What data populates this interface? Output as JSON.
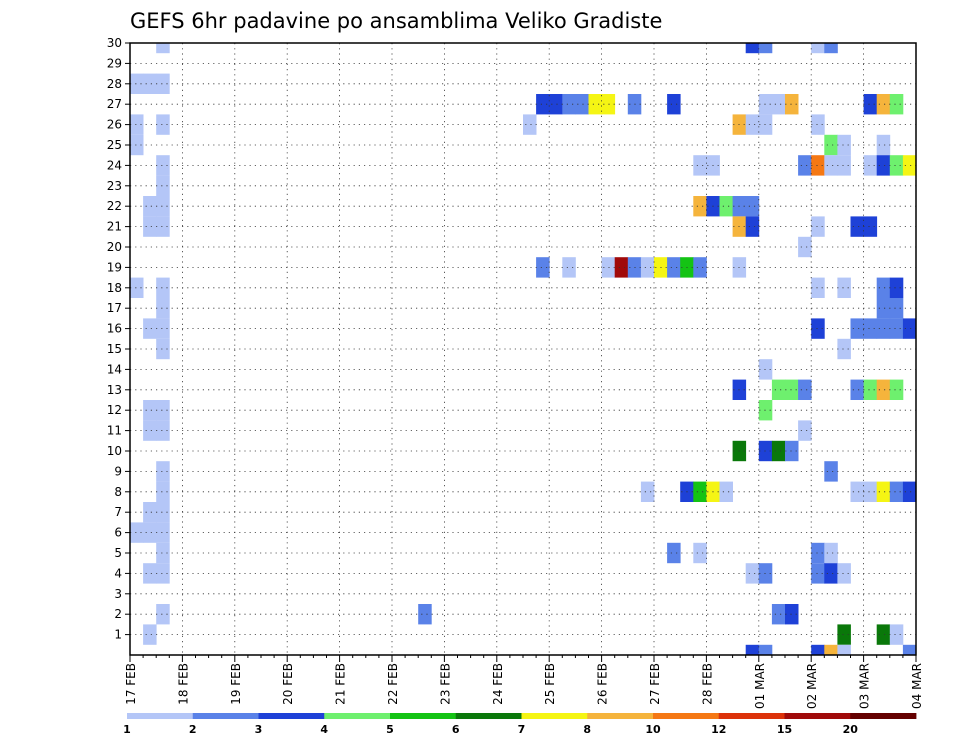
{
  "chart_data": {
    "type": "heatmap",
    "title": "GEFS 6hr padavine po ansamblima Veliko Gradiste",
    "x_tick_labels": [
      "17 FEB",
      "18 FEB",
      "19 FEB",
      "20 FEB",
      "21 FEB",
      "22 FEB",
      "23 FEB",
      "24 FEB",
      "25 FEB",
      "26 FEB",
      "27 FEB",
      "28 FEB",
      "01 MAR",
      "02 MAR",
      "03 MAR",
      "04 MAR"
    ],
    "y_tick_labels": [
      "1",
      "2",
      "3",
      "4",
      "5",
      "6",
      "7",
      "8",
      "9",
      "10",
      "11",
      "12",
      "13",
      "14",
      "15",
      "16",
      "17",
      "18",
      "19",
      "20",
      "21",
      "22",
      "23",
      "24",
      "25",
      "26",
      "27",
      "28",
      "29",
      "30"
    ],
    "y_range": [
      0,
      30
    ],
    "steps_per_day": 4,
    "grid": true,
    "colorbar": {
      "labels": [
        "1",
        "2",
        "3",
        "4",
        "5",
        "6",
        "7",
        "8",
        "10",
        "12",
        "15",
        "20"
      ],
      "colors": [
        "#b4c6f7",
        "#5a82e8",
        "#1e41d7",
        "#6ef06e",
        "#14c314",
        "#0a780a",
        "#f5f514",
        "#f5b43c",
        "#f57814",
        "#dc320a",
        "#a00a0a",
        "#640000"
      ]
    },
    "cells": [
      {
        "member": 30,
        "step": 2,
        "level": 1
      },
      {
        "member": 28,
        "step": 0,
        "level": 1
      },
      {
        "member": 28,
        "step": 1,
        "level": 1
      },
      {
        "member": 28,
        "step": 2,
        "level": 1
      },
      {
        "member": 26,
        "step": 0,
        "level": 1
      },
      {
        "member": 26,
        "step": 2,
        "level": 1
      },
      {
        "member": 25,
        "step": 0,
        "level": 1
      },
      {
        "member": 24,
        "step": 2,
        "level": 1
      },
      {
        "member": 23,
        "step": 2,
        "level": 1
      },
      {
        "member": 22,
        "step": 1,
        "level": 1
      },
      {
        "member": 22,
        "step": 2,
        "level": 1
      },
      {
        "member": 21,
        "step": 1,
        "level": 1
      },
      {
        "member": 21,
        "step": 2,
        "level": 1
      },
      {
        "member": 18,
        "step": 0,
        "level": 1
      },
      {
        "member": 18,
        "step": 2,
        "level": 1
      },
      {
        "member": 17,
        "step": 2,
        "level": 1
      },
      {
        "member": 16,
        "step": 1,
        "level": 1
      },
      {
        "member": 16,
        "step": 2,
        "level": 1
      },
      {
        "member": 15,
        "step": 2,
        "level": 1
      },
      {
        "member": 12,
        "step": 1,
        "level": 1
      },
      {
        "member": 12,
        "step": 2,
        "level": 1
      },
      {
        "member": 11,
        "step": 1,
        "level": 1
      },
      {
        "member": 11,
        "step": 2,
        "level": 1
      },
      {
        "member": 9,
        "step": 2,
        "level": 1
      },
      {
        "member": 8,
        "step": 2,
        "level": 1
      },
      {
        "member": 7,
        "step": 1,
        "level": 1
      },
      {
        "member": 7,
        "step": 2,
        "level": 1
      },
      {
        "member": 6,
        "step": 0,
        "level": 1
      },
      {
        "member": 6,
        "step": 1,
        "level": 1
      },
      {
        "member": 6,
        "step": 2,
        "level": 1
      },
      {
        "member": 5,
        "step": 2,
        "level": 1
      },
      {
        "member": 4,
        "step": 1,
        "level": 1
      },
      {
        "member": 4,
        "step": 2,
        "level": 1
      },
      {
        "member": 2,
        "step": 2,
        "level": 1
      },
      {
        "member": 1,
        "step": 1,
        "level": 1
      },
      {
        "member": 2,
        "step": 22,
        "level": 2
      },
      {
        "member": 27,
        "step": 31,
        "level": 3
      },
      {
        "member": 27,
        "step": 32,
        "level": 3
      },
      {
        "member": 27,
        "step": 33,
        "level": 2
      },
      {
        "member": 27,
        "step": 34,
        "level": 2
      },
      {
        "member": 27,
        "step": 35,
        "level": 7
      },
      {
        "member": 27,
        "step": 36,
        "level": 7
      },
      {
        "member": 27,
        "step": 38,
        "level": 2
      },
      {
        "member": 27,
        "step": 41,
        "level": 3
      },
      {
        "member": 27,
        "step": 48,
        "level": 1
      },
      {
        "member": 27,
        "step": 49,
        "level": 1
      },
      {
        "member": 27,
        "step": 50,
        "level": 8
      },
      {
        "member": 27,
        "step": 56,
        "level": 3
      },
      {
        "member": 27,
        "step": 57,
        "level": 8
      },
      {
        "member": 27,
        "step": 58,
        "level": 4
      },
      {
        "member": 26,
        "step": 30,
        "level": 1
      },
      {
        "member": 26,
        "step": 46,
        "level": 8
      },
      {
        "member": 26,
        "step": 47,
        "level": 1
      },
      {
        "member": 26,
        "step": 48,
        "level": 1
      },
      {
        "member": 26,
        "step": 52,
        "level": 1
      },
      {
        "member": 25,
        "step": 53,
        "level": 4
      },
      {
        "member": 25,
        "step": 54,
        "level": 1
      },
      {
        "member": 25,
        "step": 57,
        "level": 1
      },
      {
        "member": 24,
        "step": 43,
        "level": 1
      },
      {
        "member": 24,
        "step": 44,
        "level": 1
      },
      {
        "member": 24,
        "step": 51,
        "level": 2
      },
      {
        "member": 24,
        "step": 52,
        "level": 9
      },
      {
        "member": 24,
        "step": 53,
        "level": 1
      },
      {
        "member": 24,
        "step": 54,
        "level": 1
      },
      {
        "member": 24,
        "step": 56,
        "level": 1
      },
      {
        "member": 24,
        "step": 57,
        "level": 3
      },
      {
        "member": 24,
        "step": 58,
        "level": 4
      },
      {
        "member": 24,
        "step": 59,
        "level": 7
      },
      {
        "member": 22,
        "step": 43,
        "level": 8
      },
      {
        "member": 22,
        "step": 44,
        "level": 3
      },
      {
        "member": 22,
        "step": 45,
        "level": 4
      },
      {
        "member": 22,
        "step": 46,
        "level": 2
      },
      {
        "member": 22,
        "step": 47,
        "level": 2
      },
      {
        "member": 21,
        "step": 46,
        "level": 8
      },
      {
        "member": 21,
        "step": 47,
        "level": 3
      },
      {
        "member": 21,
        "step": 52,
        "level": 1
      },
      {
        "member": 21,
        "step": 55,
        "level": 3
      },
      {
        "member": 21,
        "step": 56,
        "level": 3
      },
      {
        "member": 20,
        "step": 51,
        "level": 1
      },
      {
        "member": 19,
        "step": 31,
        "level": 2
      },
      {
        "member": 19,
        "step": 33,
        "level": 1
      },
      {
        "member": 19,
        "step": 36,
        "level": 1
      },
      {
        "member": 19,
        "step": 37,
        "level": 11
      },
      {
        "member": 19,
        "step": 38,
        "level": 2
      },
      {
        "member": 19,
        "step": 39,
        "level": 1
      },
      {
        "member": 19,
        "step": 40,
        "level": 7
      },
      {
        "member": 19,
        "step": 41,
        "level": 2
      },
      {
        "member": 19,
        "step": 42,
        "level": 5
      },
      {
        "member": 19,
        "step": 43,
        "level": 2
      },
      {
        "member": 19,
        "step": 46,
        "level": 1
      },
      {
        "member": 18,
        "step": 52,
        "level": 1
      },
      {
        "member": 18,
        "step": 54,
        "level": 1
      },
      {
        "member": 18,
        "step": 57,
        "level": 2
      },
      {
        "member": 18,
        "step": 58,
        "level": 3
      },
      {
        "member": 17,
        "step": 57,
        "level": 2
      },
      {
        "member": 17,
        "step": 58,
        "level": 2
      },
      {
        "member": 16,
        "step": 52,
        "level": 3
      },
      {
        "member": 16,
        "step": 55,
        "level": 2
      },
      {
        "member": 16,
        "step": 56,
        "level": 2
      },
      {
        "member": 16,
        "step": 57,
        "level": 2
      },
      {
        "member": 16,
        "step": 58,
        "level": 2
      },
      {
        "member": 16,
        "step": 59,
        "level": 3
      },
      {
        "member": 15,
        "step": 54,
        "level": 1
      },
      {
        "member": 14,
        "step": 48,
        "level": 1
      },
      {
        "member": 13,
        "step": 46,
        "level": 3
      },
      {
        "member": 13,
        "step": 49,
        "level": 4
      },
      {
        "member": 13,
        "step": 50,
        "level": 4
      },
      {
        "member": 13,
        "step": 51,
        "level": 2
      },
      {
        "member": 13,
        "step": 55,
        "level": 2
      },
      {
        "member": 13,
        "step": 56,
        "level": 4
      },
      {
        "member": 13,
        "step": 57,
        "level": 8
      },
      {
        "member": 13,
        "step": 58,
        "level": 4
      },
      {
        "member": 12,
        "step": 48,
        "level": 4
      },
      {
        "member": 11,
        "step": 51,
        "level": 1
      },
      {
        "member": 10,
        "step": 46,
        "level": 6
      },
      {
        "member": 10,
        "step": 48,
        "level": 3
      },
      {
        "member": 10,
        "step": 49,
        "level": 6
      },
      {
        "member": 10,
        "step": 50,
        "level": 2
      },
      {
        "member": 9,
        "step": 53,
        "level": 2
      },
      {
        "member": 8,
        "step": 39,
        "level": 1
      },
      {
        "member": 8,
        "step": 42,
        "level": 3
      },
      {
        "member": 8,
        "step": 43,
        "level": 5
      },
      {
        "member": 8,
        "step": 44,
        "level": 7
      },
      {
        "member": 8,
        "step": 45,
        "level": 1
      },
      {
        "member": 8,
        "step": 55,
        "level": 1
      },
      {
        "member": 8,
        "step": 56,
        "level": 1
      },
      {
        "member": 8,
        "step": 57,
        "level": 7
      },
      {
        "member": 8,
        "step": 58,
        "level": 2
      },
      {
        "member": 8,
        "step": 59,
        "level": 3
      },
      {
        "member": 5,
        "step": 41,
        "level": 2
      },
      {
        "member": 5,
        "step": 43,
        "level": 1
      },
      {
        "member": 5,
        "step": 52,
        "level": 2
      },
      {
        "member": 5,
        "step": 53,
        "level": 1
      },
      {
        "member": 4,
        "step": 47,
        "level": 1
      },
      {
        "member": 4,
        "step": 48,
        "level": 2
      },
      {
        "member": 4,
        "step": 52,
        "level": 2
      },
      {
        "member": 4,
        "step": 53,
        "level": 3
      },
      {
        "member": 4,
        "step": 54,
        "level": 1
      },
      {
        "member": 2,
        "step": 49,
        "level": 2
      },
      {
        "member": 2,
        "step": 50,
        "level": 3
      },
      {
        "member": 1,
        "step": 54,
        "level": 6
      },
      {
        "member": 1,
        "step": 57,
        "level": 6
      },
      {
        "member": 1,
        "step": 58,
        "level": 1
      },
      {
        "member": 0,
        "step": 47,
        "level": 3
      },
      {
        "member": 0,
        "step": 48,
        "level": 2
      },
      {
        "member": 0,
        "step": 52,
        "level": 3
      },
      {
        "member": 0,
        "step": 53,
        "level": 8
      },
      {
        "member": 0,
        "step": 54,
        "level": 1
      },
      {
        "member": 0,
        "step": 59,
        "level": 2
      },
      {
        "member": 30,
        "step": 47,
        "level": 3
      },
      {
        "member": 30,
        "step": 48,
        "level": 2
      },
      {
        "member": 30,
        "step": 52,
        "level": 1
      },
      {
        "member": 30,
        "step": 53,
        "level": 2
      }
    ]
  }
}
